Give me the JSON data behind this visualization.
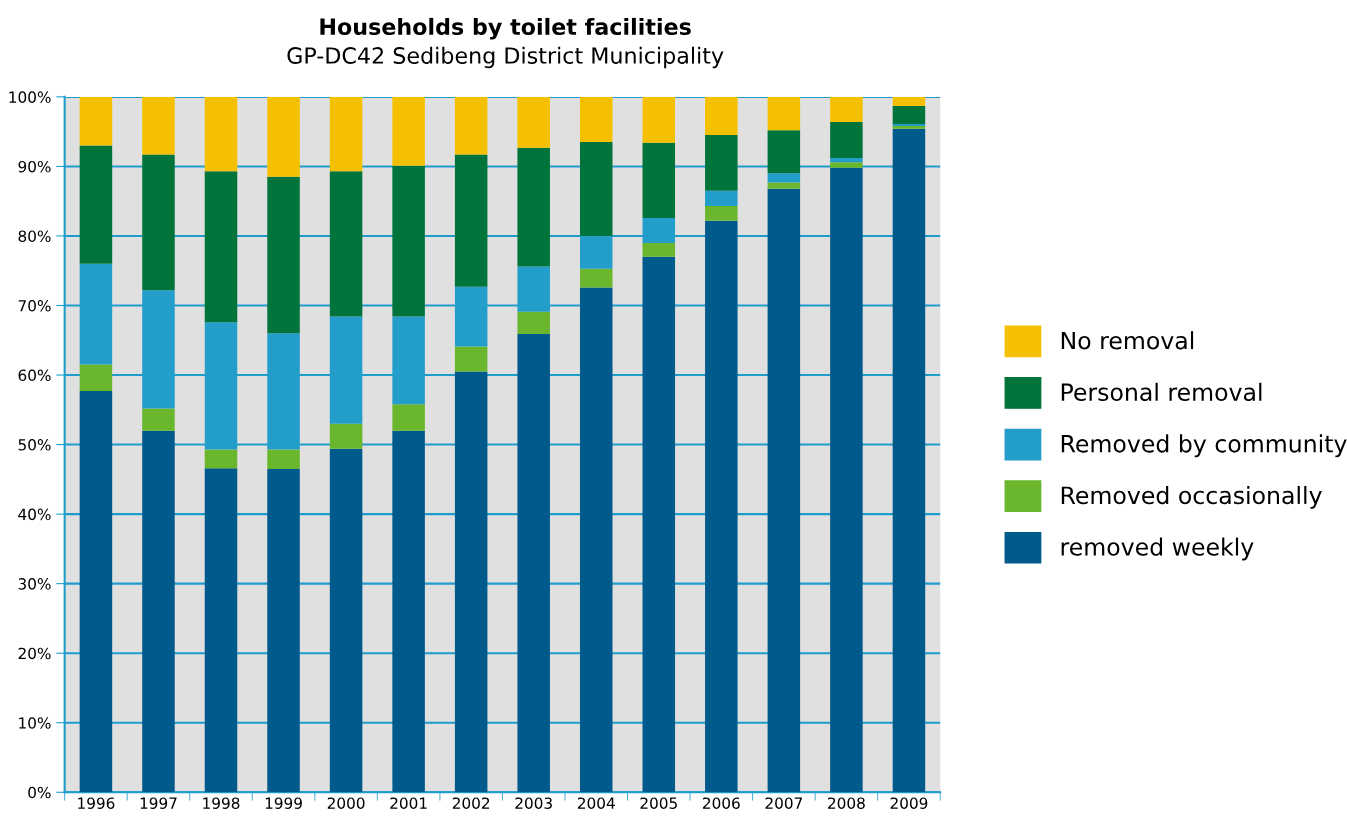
{
  "chart_data": {
    "type": "bar",
    "stacked": true,
    "title": "Households by toilet facilities",
    "subtitle": "GP-DC42 Sedibeng District Municipality",
    "categories": [
      "1996",
      "1997",
      "1998",
      "1999",
      "2000",
      "2001",
      "2002",
      "2003",
      "2004",
      "2005",
      "2006",
      "2007",
      "2008",
      "2009"
    ],
    "series": [
      {
        "name": "removed weekly",
        "color": "#005a8b",
        "values": [
          57.7,
          52,
          46.6,
          46.5,
          49.4,
          52,
          60.5,
          65.9,
          72.6,
          77,
          82.2,
          86.8,
          89.8,
          95.4
        ]
      },
      {
        "name": "Removed occasionally",
        "color": "#6ab72e",
        "values": [
          3.8,
          3.2,
          2.7,
          2.8,
          3.6,
          3.8,
          3.6,
          3.2,
          2.7,
          2,
          2.1,
          0.9,
          0.8,
          0.4
        ]
      },
      {
        "name": "Removed by community",
        "color": "#239dc9",
        "values": [
          14.5,
          17,
          18.3,
          16.7,
          15.4,
          12.6,
          8.6,
          6.5,
          4.7,
          3.6,
          2.2,
          1.3,
          0.6,
          0.3
        ]
      },
      {
        "name": "Personal removal",
        "color": "#00743b",
        "values": [
          17,
          19.5,
          21.7,
          22.5,
          20.9,
          21.7,
          19,
          17.1,
          13.5,
          10.8,
          8,
          6.2,
          5.2,
          2.6
        ]
      },
      {
        "name": "No removal",
        "color": "#f5c000",
        "values": [
          7,
          8.3,
          10.7,
          11.5,
          10.7,
          9.9,
          8.3,
          7.3,
          6.5,
          6.6,
          5.5,
          4.8,
          3.6,
          1.3
        ]
      }
    ],
    "ylim": [
      0,
      100
    ],
    "yticks": [
      {
        "value": 0,
        "label": "0%"
      },
      {
        "value": 10,
        "label": "10%"
      },
      {
        "value": 20,
        "label": "20%"
      },
      {
        "value": 30,
        "label": "30%"
      },
      {
        "value": 40,
        "label": "40%"
      },
      {
        "value": 50,
        "label": "50%"
      },
      {
        "value": 60,
        "label": "60%"
      },
      {
        "value": 70,
        "label": "70%"
      },
      {
        "value": 80,
        "label": "80%"
      },
      {
        "value": 90,
        "label": "90%"
      },
      {
        "value": 100,
        "label": "100%"
      }
    ],
    "grid": "y",
    "legend": "right"
  }
}
